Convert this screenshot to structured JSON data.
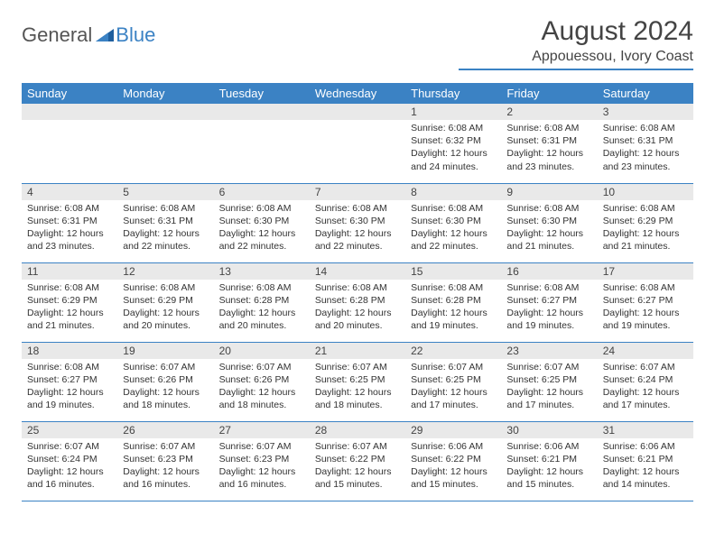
{
  "logo": {
    "general": "General",
    "blue": "Blue"
  },
  "header": {
    "title": "August 2024",
    "location": "Appouessou, Ivory Coast"
  },
  "colors": {
    "accent": "#3b82c4",
    "daynum_bg": "#e9e9e9",
    "text": "#333333"
  },
  "calendar": {
    "day_names": [
      "Sunday",
      "Monday",
      "Tuesday",
      "Wednesday",
      "Thursday",
      "Friday",
      "Saturday"
    ],
    "weeks": [
      [
        {
          "n": "",
          "sr": "",
          "ss": "",
          "dl": ""
        },
        {
          "n": "",
          "sr": "",
          "ss": "",
          "dl": ""
        },
        {
          "n": "",
          "sr": "",
          "ss": "",
          "dl": ""
        },
        {
          "n": "",
          "sr": "",
          "ss": "",
          "dl": ""
        },
        {
          "n": "1",
          "sr": "Sunrise: 6:08 AM",
          "ss": "Sunset: 6:32 PM",
          "dl": "Daylight: 12 hours and 24 minutes."
        },
        {
          "n": "2",
          "sr": "Sunrise: 6:08 AM",
          "ss": "Sunset: 6:31 PM",
          "dl": "Daylight: 12 hours and 23 minutes."
        },
        {
          "n": "3",
          "sr": "Sunrise: 6:08 AM",
          "ss": "Sunset: 6:31 PM",
          "dl": "Daylight: 12 hours and 23 minutes."
        }
      ],
      [
        {
          "n": "4",
          "sr": "Sunrise: 6:08 AM",
          "ss": "Sunset: 6:31 PM",
          "dl": "Daylight: 12 hours and 23 minutes."
        },
        {
          "n": "5",
          "sr": "Sunrise: 6:08 AM",
          "ss": "Sunset: 6:31 PM",
          "dl": "Daylight: 12 hours and 22 minutes."
        },
        {
          "n": "6",
          "sr": "Sunrise: 6:08 AM",
          "ss": "Sunset: 6:30 PM",
          "dl": "Daylight: 12 hours and 22 minutes."
        },
        {
          "n": "7",
          "sr": "Sunrise: 6:08 AM",
          "ss": "Sunset: 6:30 PM",
          "dl": "Daylight: 12 hours and 22 minutes."
        },
        {
          "n": "8",
          "sr": "Sunrise: 6:08 AM",
          "ss": "Sunset: 6:30 PM",
          "dl": "Daylight: 12 hours and 22 minutes."
        },
        {
          "n": "9",
          "sr": "Sunrise: 6:08 AM",
          "ss": "Sunset: 6:30 PM",
          "dl": "Daylight: 12 hours and 21 minutes."
        },
        {
          "n": "10",
          "sr": "Sunrise: 6:08 AM",
          "ss": "Sunset: 6:29 PM",
          "dl": "Daylight: 12 hours and 21 minutes."
        }
      ],
      [
        {
          "n": "11",
          "sr": "Sunrise: 6:08 AM",
          "ss": "Sunset: 6:29 PM",
          "dl": "Daylight: 12 hours and 21 minutes."
        },
        {
          "n": "12",
          "sr": "Sunrise: 6:08 AM",
          "ss": "Sunset: 6:29 PM",
          "dl": "Daylight: 12 hours and 20 minutes."
        },
        {
          "n": "13",
          "sr": "Sunrise: 6:08 AM",
          "ss": "Sunset: 6:28 PM",
          "dl": "Daylight: 12 hours and 20 minutes."
        },
        {
          "n": "14",
          "sr": "Sunrise: 6:08 AM",
          "ss": "Sunset: 6:28 PM",
          "dl": "Daylight: 12 hours and 20 minutes."
        },
        {
          "n": "15",
          "sr": "Sunrise: 6:08 AM",
          "ss": "Sunset: 6:28 PM",
          "dl": "Daylight: 12 hours and 19 minutes."
        },
        {
          "n": "16",
          "sr": "Sunrise: 6:08 AM",
          "ss": "Sunset: 6:27 PM",
          "dl": "Daylight: 12 hours and 19 minutes."
        },
        {
          "n": "17",
          "sr": "Sunrise: 6:08 AM",
          "ss": "Sunset: 6:27 PM",
          "dl": "Daylight: 12 hours and 19 minutes."
        }
      ],
      [
        {
          "n": "18",
          "sr": "Sunrise: 6:08 AM",
          "ss": "Sunset: 6:27 PM",
          "dl": "Daylight: 12 hours and 19 minutes."
        },
        {
          "n": "19",
          "sr": "Sunrise: 6:07 AM",
          "ss": "Sunset: 6:26 PM",
          "dl": "Daylight: 12 hours and 18 minutes."
        },
        {
          "n": "20",
          "sr": "Sunrise: 6:07 AM",
          "ss": "Sunset: 6:26 PM",
          "dl": "Daylight: 12 hours and 18 minutes."
        },
        {
          "n": "21",
          "sr": "Sunrise: 6:07 AM",
          "ss": "Sunset: 6:25 PM",
          "dl": "Daylight: 12 hours and 18 minutes."
        },
        {
          "n": "22",
          "sr": "Sunrise: 6:07 AM",
          "ss": "Sunset: 6:25 PM",
          "dl": "Daylight: 12 hours and 17 minutes."
        },
        {
          "n": "23",
          "sr": "Sunrise: 6:07 AM",
          "ss": "Sunset: 6:25 PM",
          "dl": "Daylight: 12 hours and 17 minutes."
        },
        {
          "n": "24",
          "sr": "Sunrise: 6:07 AM",
          "ss": "Sunset: 6:24 PM",
          "dl": "Daylight: 12 hours and 17 minutes."
        }
      ],
      [
        {
          "n": "25",
          "sr": "Sunrise: 6:07 AM",
          "ss": "Sunset: 6:24 PM",
          "dl": "Daylight: 12 hours and 16 minutes."
        },
        {
          "n": "26",
          "sr": "Sunrise: 6:07 AM",
          "ss": "Sunset: 6:23 PM",
          "dl": "Daylight: 12 hours and 16 minutes."
        },
        {
          "n": "27",
          "sr": "Sunrise: 6:07 AM",
          "ss": "Sunset: 6:23 PM",
          "dl": "Daylight: 12 hours and 16 minutes."
        },
        {
          "n": "28",
          "sr": "Sunrise: 6:07 AM",
          "ss": "Sunset: 6:22 PM",
          "dl": "Daylight: 12 hours and 15 minutes."
        },
        {
          "n": "29",
          "sr": "Sunrise: 6:06 AM",
          "ss": "Sunset: 6:22 PM",
          "dl": "Daylight: 12 hours and 15 minutes."
        },
        {
          "n": "30",
          "sr": "Sunrise: 6:06 AM",
          "ss": "Sunset: 6:21 PM",
          "dl": "Daylight: 12 hours and 15 minutes."
        },
        {
          "n": "31",
          "sr": "Sunrise: 6:06 AM",
          "ss": "Sunset: 6:21 PM",
          "dl": "Daylight: 12 hours and 14 minutes."
        }
      ]
    ]
  }
}
